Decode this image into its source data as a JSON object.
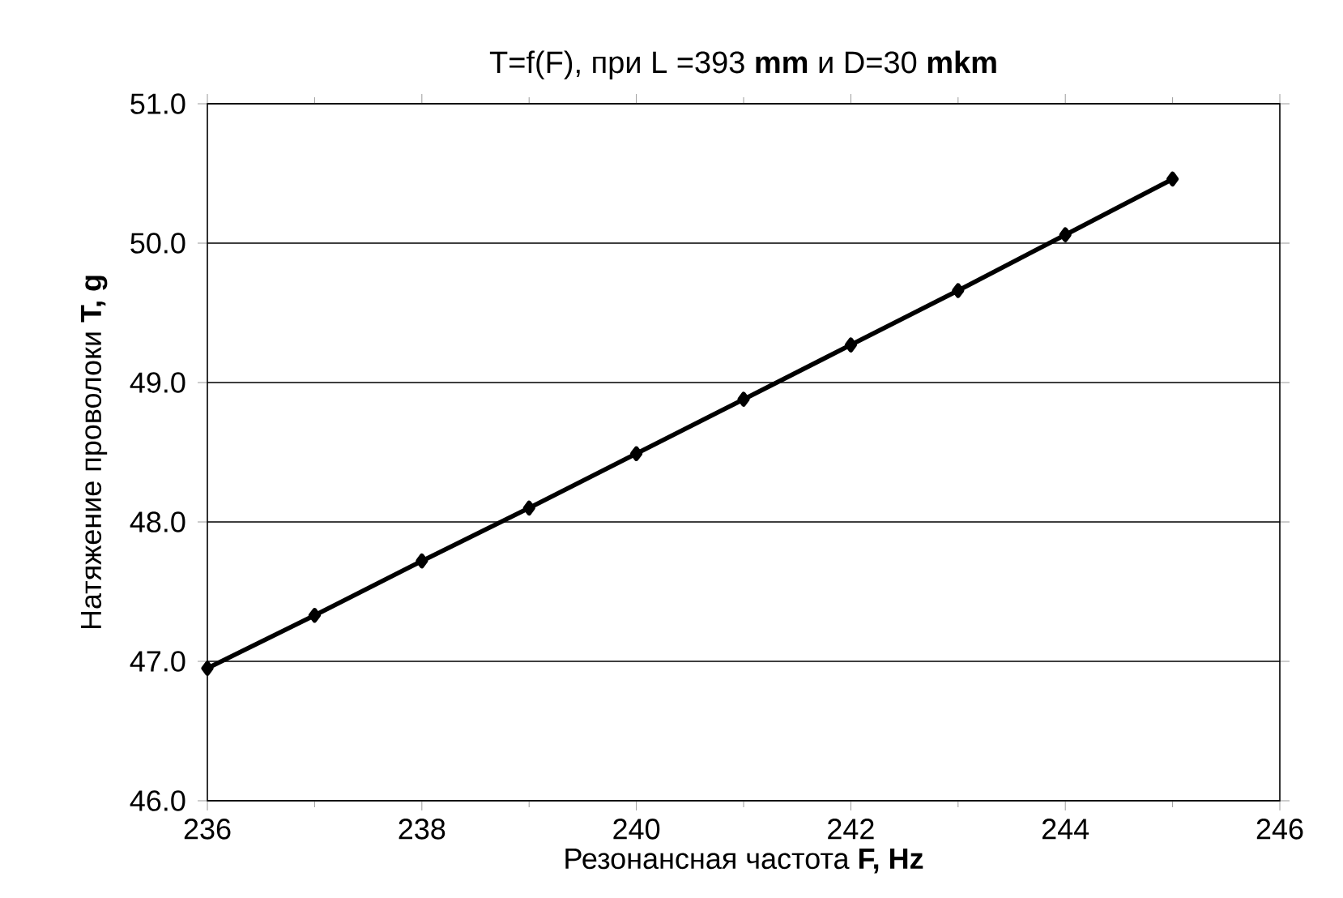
{
  "chart_data": {
    "type": "line",
    "title": "T=f(F), при L =393   **mm** и  D=30  **mkm**",
    "xlabel": "Резонансная частота  **F, Hz**",
    "ylabel": "Натяжение проволоки  **T, g**",
    "x": [
      236,
      237,
      238,
      239,
      240,
      241,
      242,
      243,
      244,
      245
    ],
    "series": [
      {
        "color": "#000000",
        "values": [
          46.95,
          47.33,
          47.72,
          48.1,
          48.49,
          48.88,
          49.27,
          49.66,
          50.06,
          50.46
        ]
      }
    ],
    "xlim": [
      236,
      246
    ],
    "xticks": [
      236,
      238,
      240,
      242,
      244,
      246
    ],
    "ylim": [
      46,
      51
    ],
    "yticks": [
      {
        "value": 46,
        "label": "46.0"
      },
      {
        "value": 47,
        "label": "47.0"
      },
      {
        "value": 48,
        "label": "48.0"
      },
      {
        "value": 49,
        "label": "49.0"
      },
      {
        "value": 50,
        "label": "50.0"
      },
      {
        "value": 51,
        "label": "51.0"
      }
    ],
    "grid": "y",
    "marker": "diamond",
    "line_style": "solid"
  }
}
